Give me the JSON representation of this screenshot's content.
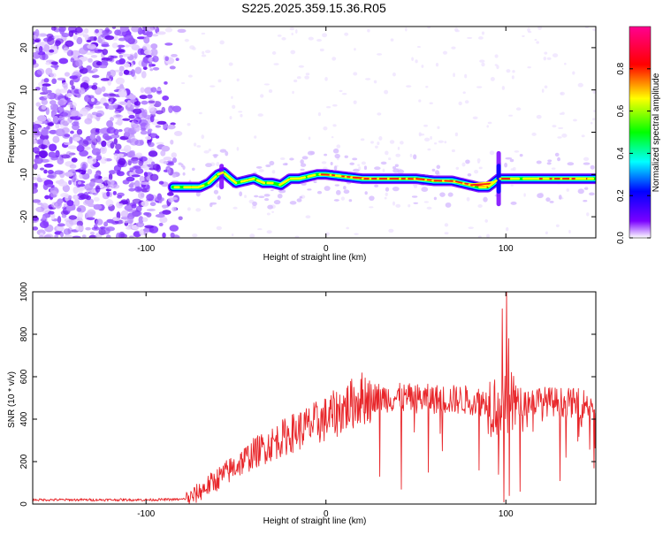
{
  "title": "S225.2025.359.15.36.R05",
  "chart_data": [
    {
      "type": "heatmap",
      "title": "S225.2025.359.15.36.R05",
      "xlabel": "Height of straight line (km)",
      "ylabel": "Frequency (Hz)",
      "xlim": [
        -163,
        150
      ],
      "ylim": [
        -25,
        25
      ],
      "x_ticks": [
        -100,
        0,
        100
      ],
      "y_ticks": [
        -20,
        -10,
        0,
        10,
        20
      ],
      "colorbar": {
        "label": "Normalized spectral amplitude",
        "range": [
          0,
          1
        ],
        "ticks": [
          "0.0",
          "0.2",
          "0.4",
          "0.6",
          "0.8"
        ],
        "colors": [
          "#ffffff",
          "#7a00ff",
          "#0000ff",
          "#00ffff",
          "#00ff00",
          "#ffff00",
          "#ff0000",
          "#ff0090"
        ]
      },
      "signal_trace": {
        "x": [
          -85,
          -80,
          -75,
          -70,
          -65,
          -60,
          -57,
          -53,
          -50,
          -45,
          -40,
          -35,
          -30,
          -25,
          -20,
          -15,
          -10,
          -5,
          0,
          10,
          20,
          30,
          40,
          50,
          60,
          70,
          75,
          80,
          85,
          90,
          93,
          96,
          100,
          110,
          120,
          130,
          140,
          150
        ],
        "y": [
          -13,
          -13,
          -13,
          -13,
          -12,
          -10,
          -9.5,
          -11,
          -12,
          -11.5,
          -11,
          -12,
          -12,
          -12.5,
          -11,
          -11,
          -10.5,
          -10,
          -10,
          -10.5,
          -11,
          -11,
          -11,
          -11,
          -11.5,
          -11.5,
          -12,
          -12.5,
          -13,
          -13,
          -12,
          -11,
          -11,
          -11,
          -11,
          -11,
          -11,
          -11
        ]
      }
    },
    {
      "type": "line",
      "xlabel": "Height of straight line (km)",
      "ylabel": "SNR (10 * v/v)",
      "xlim": [
        -163,
        150
      ],
      "ylim": [
        0,
        1000
      ],
      "x_ticks": [
        -100,
        0,
        100
      ],
      "y_ticks": [
        0,
        200,
        400,
        600,
        800,
        1000
      ],
      "color": "#e8262a",
      "trend": {
        "x": [
          -163,
          -100,
          -80,
          -75,
          -60,
          -40,
          -20,
          0,
          20,
          25,
          40,
          60,
          80,
          90,
          95,
          100,
          105,
          120,
          150
        ],
        "y": [
          20,
          20,
          22,
          30,
          120,
          240,
          330,
          400,
          500,
          505,
          500,
          495,
          490,
          480,
          470,
          450,
          480,
          485,
          470
        ]
      },
      "spikes": [
        {
          "x": 100.5,
          "y": 1000
        },
        {
          "x": 98,
          "y": 920
        },
        {
          "x": 101.5,
          "y": 780
        },
        {
          "x": 99,
          "y": 10
        },
        {
          "x": 102,
          "y": 40
        },
        {
          "x": 96,
          "y": 140
        },
        {
          "x": 108,
          "y": 60
        },
        {
          "x": 30,
          "y": 130
        },
        {
          "x": 42,
          "y": 70
        },
        {
          "x": 57,
          "y": 150
        },
        {
          "x": 85,
          "y": 160
        },
        {
          "x": 130,
          "y": 110
        },
        {
          "x": 149,
          "y": 170
        }
      ]
    }
  ]
}
